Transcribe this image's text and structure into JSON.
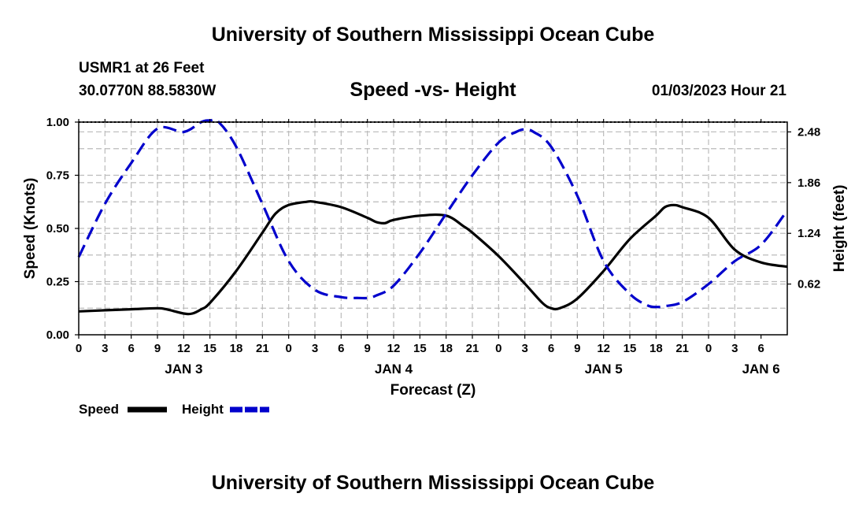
{
  "header": {
    "title": "University of Southern Mississippi Ocean Cube",
    "station": "USMR1 at 26 Feet",
    "coordinates": "30.0770N  88.5830W",
    "subtitle": "Speed -vs- Height",
    "datetime": "01/03/2023 Hour 21",
    "bottom_title": "University of Southern Mississippi Ocean Cube"
  },
  "chart_data": {
    "type": "line",
    "title": "Speed -vs- Height",
    "xlabel": "Forecast (Z)",
    "ylabel": "Speed (Knots)",
    "y2label": "Height (feet)",
    "x_hours_range": [
      0,
      81
    ],
    "x_tick_step_hours": 3,
    "x_tick_labels": [
      "0",
      "3",
      "6",
      "9",
      "12",
      "15",
      "18",
      "21",
      "0",
      "3",
      "6",
      "9",
      "12",
      "15",
      "18",
      "21",
      "0",
      "3",
      "6",
      "9",
      "12",
      "15",
      "18",
      "21",
      "0",
      "3",
      "6"
    ],
    "date_labels": [
      {
        "label": "JAN 3",
        "hour": 12
      },
      {
        "label": "JAN 4",
        "hour": 36
      },
      {
        "label": "JAN 5",
        "hour": 60
      },
      {
        "label": "JAN 6",
        "hour": 78
      }
    ],
    "ylim": [
      0,
      1.0
    ],
    "y_ticks": [
      0,
      0.25,
      0.5,
      0.75,
      1.0
    ],
    "y_tick_labels": [
      "0.00",
      "0.25",
      "0.50",
      "0.75",
      "1.00"
    ],
    "y2lim": [
      0,
      2.6
    ],
    "y2_ticks": [
      0.62,
      1.24,
      1.86,
      2.48
    ],
    "y2_tick_labels": [
      "0.62",
      "1.24",
      "1.86",
      "2.48"
    ],
    "grid": true,
    "legend": [
      {
        "label": "Speed",
        "color": "#000000",
        "style": "solid"
      },
      {
        "label": "Height",
        "color": "#0000cc",
        "style": "dashed"
      }
    ],
    "series": [
      {
        "name": "Speed",
        "axis": "left",
        "color": "#000000",
        "x": [
          0,
          3,
          6,
          9,
          10,
          12,
          13,
          14,
          15,
          18,
          21,
          22.5,
          24,
          26,
          27,
          30,
          33,
          34,
          35,
          36,
          39,
          42,
          44,
          45,
          48,
          51,
          53,
          54,
          55,
          57,
          60,
          63,
          66,
          67,
          68,
          69,
          72,
          75,
          78,
          81
        ],
        "values": [
          0.11,
          0.115,
          0.12,
          0.125,
          0.12,
          0.1,
          0.1,
          0.12,
          0.15,
          0.3,
          0.48,
          0.57,
          0.61,
          0.625,
          0.625,
          0.6,
          0.55,
          0.53,
          0.525,
          0.54,
          0.56,
          0.56,
          0.51,
          0.48,
          0.37,
          0.24,
          0.15,
          0.125,
          0.125,
          0.17,
          0.3,
          0.45,
          0.56,
          0.6,
          0.61,
          0.6,
          0.55,
          0.4,
          0.34,
          0.32
        ]
      },
      {
        "name": "Height",
        "axis": "right",
        "color": "#0000cc",
        "x": [
          0,
          3,
          6,
          9,
          12,
          14,
          15,
          16,
          18,
          21,
          24,
          27,
          30,
          32,
          33,
          34,
          36,
          39,
          42,
          45,
          48,
          50,
          51,
          52,
          54,
          57,
          60,
          63,
          65,
          66,
          67,
          69,
          72,
          75,
          78,
          81
        ],
        "values": [
          0.95,
          1.6,
          2.1,
          2.52,
          2.48,
          2.6,
          2.62,
          2.6,
          2.3,
          1.6,
          0.9,
          0.55,
          0.46,
          0.45,
          0.45,
          0.48,
          0.6,
          1.0,
          1.48,
          1.95,
          2.35,
          2.48,
          2.51,
          2.48,
          2.3,
          1.7,
          0.9,
          0.5,
          0.36,
          0.34,
          0.35,
          0.4,
          0.62,
          0.9,
          1.1,
          1.52
        ]
      }
    ]
  }
}
